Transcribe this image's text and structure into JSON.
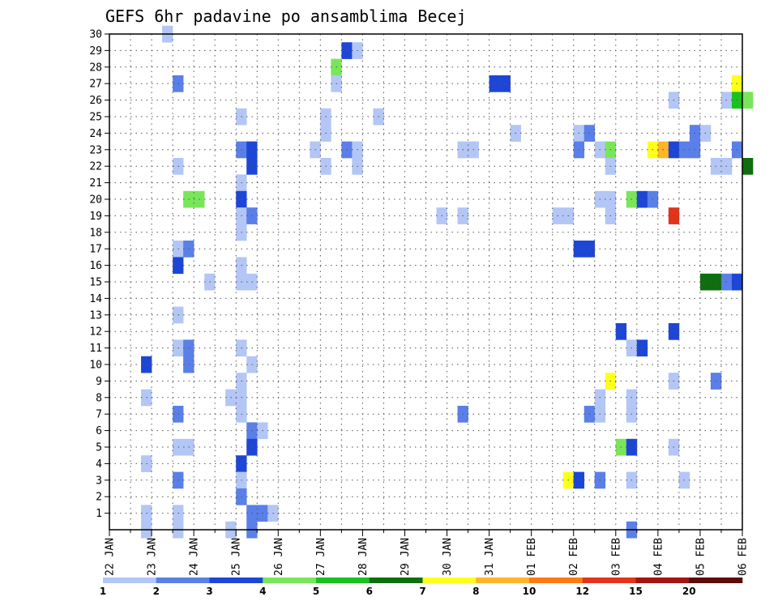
{
  "chart_data": {
    "type": "heatmap",
    "title": "GEFS 6hr padavine po ansamblima Becej",
    "x_tick_labels": [
      "22 JAN",
      "23 JAN",
      "24 JAN",
      "25 JAN",
      "26 JAN",
      "27 JAN",
      "28 JAN",
      "29 JAN",
      "30 JAN",
      "31 JAN",
      "01 FEB",
      "02 FEB",
      "03 FEB",
      "04 FEB",
      "05 FEB",
      "06 FEB"
    ],
    "y_tick_labels": [
      "1",
      "2",
      "3",
      "4",
      "5",
      "6",
      "7",
      "8",
      "9",
      "10",
      "11",
      "12",
      "13",
      "14",
      "15",
      "16",
      "17",
      "18",
      "19",
      "20",
      "21",
      "22",
      "23",
      "24",
      "25",
      "26",
      "27",
      "28",
      "29",
      "30"
    ],
    "xlim_days": [
      0,
      15
    ],
    "ylim": [
      0,
      30
    ],
    "grid": true,
    "colorbar": {
      "labels": [
        "1",
        "2",
        "3",
        "4",
        "5",
        "6",
        "7",
        "8",
        "10",
        "12",
        "15",
        "20"
      ],
      "colors": [
        "#b3c6f5",
        "#5a7fe8",
        "#1e46d6",
        "#79e65a",
        "#19c21e",
        "#0f6e10",
        "#ffff1e",
        "#ffb429",
        "#ff7a14",
        "#e3331a",
        "#a31414",
        "#5c0a0a"
      ]
    },
    "cells": [
      {
        "x": 5,
        "y": 30,
        "c": 0
      },
      {
        "x": 22,
        "y": 29,
        "c": 2
      },
      {
        "x": 23,
        "y": 29,
        "c": 0
      },
      {
        "x": 21,
        "y": 28,
        "c": 3
      },
      {
        "x": 6,
        "y": 27,
        "c": 1
      },
      {
        "x": 21,
        "y": 27,
        "c": 0
      },
      {
        "x": 36,
        "y": 27,
        "c": 2
      },
      {
        "x": 37,
        "y": 27,
        "c": 2
      },
      {
        "x": 59,
        "y": 27,
        "c": 6
      },
      {
        "x": 53,
        "y": 26,
        "c": 0
      },
      {
        "x": 58,
        "y": 26,
        "c": 0
      },
      {
        "x": 59,
        "y": 26,
        "c": 4
      },
      {
        "x": 60,
        "y": 26,
        "c": 3
      },
      {
        "x": 12,
        "y": 25,
        "c": 0
      },
      {
        "x": 20,
        "y": 25,
        "c": 0
      },
      {
        "x": 25,
        "y": 25,
        "c": 0
      },
      {
        "x": 20,
        "y": 24,
        "c": 0
      },
      {
        "x": 38,
        "y": 24,
        "c": 0
      },
      {
        "x": 44,
        "y": 24,
        "c": 0
      },
      {
        "x": 45,
        "y": 24,
        "c": 1
      },
      {
        "x": 55,
        "y": 24,
        "c": 1
      },
      {
        "x": 56,
        "y": 24,
        "c": 0
      },
      {
        "x": 12,
        "y": 23,
        "c": 1
      },
      {
        "x": 13,
        "y": 23,
        "c": 2
      },
      {
        "x": 19,
        "y": 23,
        "c": 0
      },
      {
        "x": 22,
        "y": 23,
        "c": 1
      },
      {
        "x": 23,
        "y": 23,
        "c": 0
      },
      {
        "x": 33,
        "y": 23,
        "c": 0
      },
      {
        "x": 34,
        "y": 23,
        "c": 0
      },
      {
        "x": 44,
        "y": 23,
        "c": 1
      },
      {
        "x": 46,
        "y": 23,
        "c": 0
      },
      {
        "x": 47,
        "y": 23,
        "c": 3
      },
      {
        "x": 51,
        "y": 23,
        "c": 6
      },
      {
        "x": 52,
        "y": 23,
        "c": 7
      },
      {
        "x": 53,
        "y": 23,
        "c": 2
      },
      {
        "x": 54,
        "y": 23,
        "c": 1
      },
      {
        "x": 55,
        "y": 23,
        "c": 1
      },
      {
        "x": 59,
        "y": 23,
        "c": 1
      },
      {
        "x": 6,
        "y": 22,
        "c": 0
      },
      {
        "x": 13,
        "y": 22,
        "c": 2
      },
      {
        "x": 20,
        "y": 22,
        "c": 0
      },
      {
        "x": 23,
        "y": 22,
        "c": 0
      },
      {
        "x": 47,
        "y": 22,
        "c": 0
      },
      {
        "x": 57,
        "y": 22,
        "c": 0
      },
      {
        "x": 58,
        "y": 22,
        "c": 0
      },
      {
        "x": 60,
        "y": 22,
        "c": 5
      },
      {
        "x": 12,
        "y": 21,
        "c": 0
      },
      {
        "x": 7,
        "y": 20,
        "c": 3
      },
      {
        "x": 8,
        "y": 20,
        "c": 3
      },
      {
        "x": 12,
        "y": 20,
        "c": 2
      },
      {
        "x": 46,
        "y": 20,
        "c": 0
      },
      {
        "x": 47,
        "y": 20,
        "c": 0
      },
      {
        "x": 49,
        "y": 20,
        "c": 3
      },
      {
        "x": 50,
        "y": 20,
        "c": 2
      },
      {
        "x": 51,
        "y": 20,
        "c": 1
      },
      {
        "x": 12,
        "y": 19,
        "c": 0
      },
      {
        "x": 13,
        "y": 19,
        "c": 1
      },
      {
        "x": 31,
        "y": 19,
        "c": 0
      },
      {
        "x": 33,
        "y": 19,
        "c": 0
      },
      {
        "x": 42,
        "y": 19,
        "c": 0
      },
      {
        "x": 43,
        "y": 19,
        "c": 0
      },
      {
        "x": 47,
        "y": 19,
        "c": 0
      },
      {
        "x": 53,
        "y": 19,
        "c": 9
      },
      {
        "x": 12,
        "y": 18,
        "c": 0
      },
      {
        "x": 6,
        "y": 17,
        "c": 0
      },
      {
        "x": 7,
        "y": 17,
        "c": 1
      },
      {
        "x": 44,
        "y": 17,
        "c": 2
      },
      {
        "x": 45,
        "y": 17,
        "c": 2
      },
      {
        "x": 6,
        "y": 16,
        "c": 2
      },
      {
        "x": 12,
        "y": 16,
        "c": 0
      },
      {
        "x": 9,
        "y": 15,
        "c": 0
      },
      {
        "x": 12,
        "y": 15,
        "c": 0
      },
      {
        "x": 13,
        "y": 15,
        "c": 0
      },
      {
        "x": 56,
        "y": 15,
        "c": 5
      },
      {
        "x": 57,
        "y": 15,
        "c": 5
      },
      {
        "x": 58,
        "y": 15,
        "c": 1
      },
      {
        "x": 59,
        "y": 15,
        "c": 2
      },
      {
        "x": 6,
        "y": 13,
        "c": 0
      },
      {
        "x": 48,
        "y": 12,
        "c": 2
      },
      {
        "x": 53,
        "y": 12,
        "c": 2
      },
      {
        "x": 6,
        "y": 11,
        "c": 0
      },
      {
        "x": 7,
        "y": 11,
        "c": 1
      },
      {
        "x": 12,
        "y": 11,
        "c": 0
      },
      {
        "x": 49,
        "y": 11,
        "c": 0
      },
      {
        "x": 50,
        "y": 11,
        "c": 2
      },
      {
        "x": 3,
        "y": 10,
        "c": 2
      },
      {
        "x": 7,
        "y": 10,
        "c": 1
      },
      {
        "x": 13,
        "y": 10,
        "c": 0
      },
      {
        "x": 12,
        "y": 9,
        "c": 0
      },
      {
        "x": 47,
        "y": 9,
        "c": 6
      },
      {
        "x": 53,
        "y": 9,
        "c": 0
      },
      {
        "x": 57,
        "y": 9,
        "c": 1
      },
      {
        "x": 3,
        "y": 8,
        "c": 0
      },
      {
        "x": 12,
        "y": 8,
        "c": 0
      },
      {
        "x": 11,
        "y": 8,
        "c": 0
      },
      {
        "x": 46,
        "y": 8,
        "c": 0
      },
      {
        "x": 49,
        "y": 8,
        "c": 0
      },
      {
        "x": 6,
        "y": 7,
        "c": 1
      },
      {
        "x": 12,
        "y": 7,
        "c": 0
      },
      {
        "x": 33,
        "y": 7,
        "c": 1
      },
      {
        "x": 45,
        "y": 7,
        "c": 1
      },
      {
        "x": 46,
        "y": 7,
        "c": 0
      },
      {
        "x": 49,
        "y": 7,
        "c": 0
      },
      {
        "x": 13,
        "y": 6,
        "c": 1
      },
      {
        "x": 14,
        "y": 6,
        "c": 0
      },
      {
        "x": 6,
        "y": 5,
        "c": 0
      },
      {
        "x": 7,
        "y": 5,
        "c": 0
      },
      {
        "x": 13,
        "y": 5,
        "c": 2
      },
      {
        "x": 48,
        "y": 5,
        "c": 3
      },
      {
        "x": 49,
        "y": 5,
        "c": 2
      },
      {
        "x": 53,
        "y": 5,
        "c": 0
      },
      {
        "x": 3,
        "y": 4,
        "c": 0
      },
      {
        "x": 12,
        "y": 4,
        "c": 2
      },
      {
        "x": 6,
        "y": 3,
        "c": 1
      },
      {
        "x": 12,
        "y": 3,
        "c": 0
      },
      {
        "x": 43,
        "y": 3,
        "c": 6
      },
      {
        "x": 44,
        "y": 3,
        "c": 2
      },
      {
        "x": 46,
        "y": 3,
        "c": 1
      },
      {
        "x": 49,
        "y": 3,
        "c": 0
      },
      {
        "x": 54,
        "y": 3,
        "c": 0
      },
      {
        "x": 12,
        "y": 2,
        "c": 1
      },
      {
        "x": 3,
        "y": 1,
        "c": 0
      },
      {
        "x": 6,
        "y": 1,
        "c": 0
      },
      {
        "x": 13,
        "y": 1,
        "c": 1
      },
      {
        "x": 14,
        "y": 1,
        "c": 1
      },
      {
        "x": 15,
        "y": 1,
        "c": 0
      },
      {
        "x": 3,
        "y": 0,
        "c": 0
      },
      {
        "x": 6,
        "y": 0,
        "c": 0
      },
      {
        "x": 11,
        "y": 0,
        "c": 0
      },
      {
        "x": 13,
        "y": 0,
        "c": 1
      },
      {
        "x": 49,
        "y": 0,
        "c": 1
      }
    ]
  }
}
